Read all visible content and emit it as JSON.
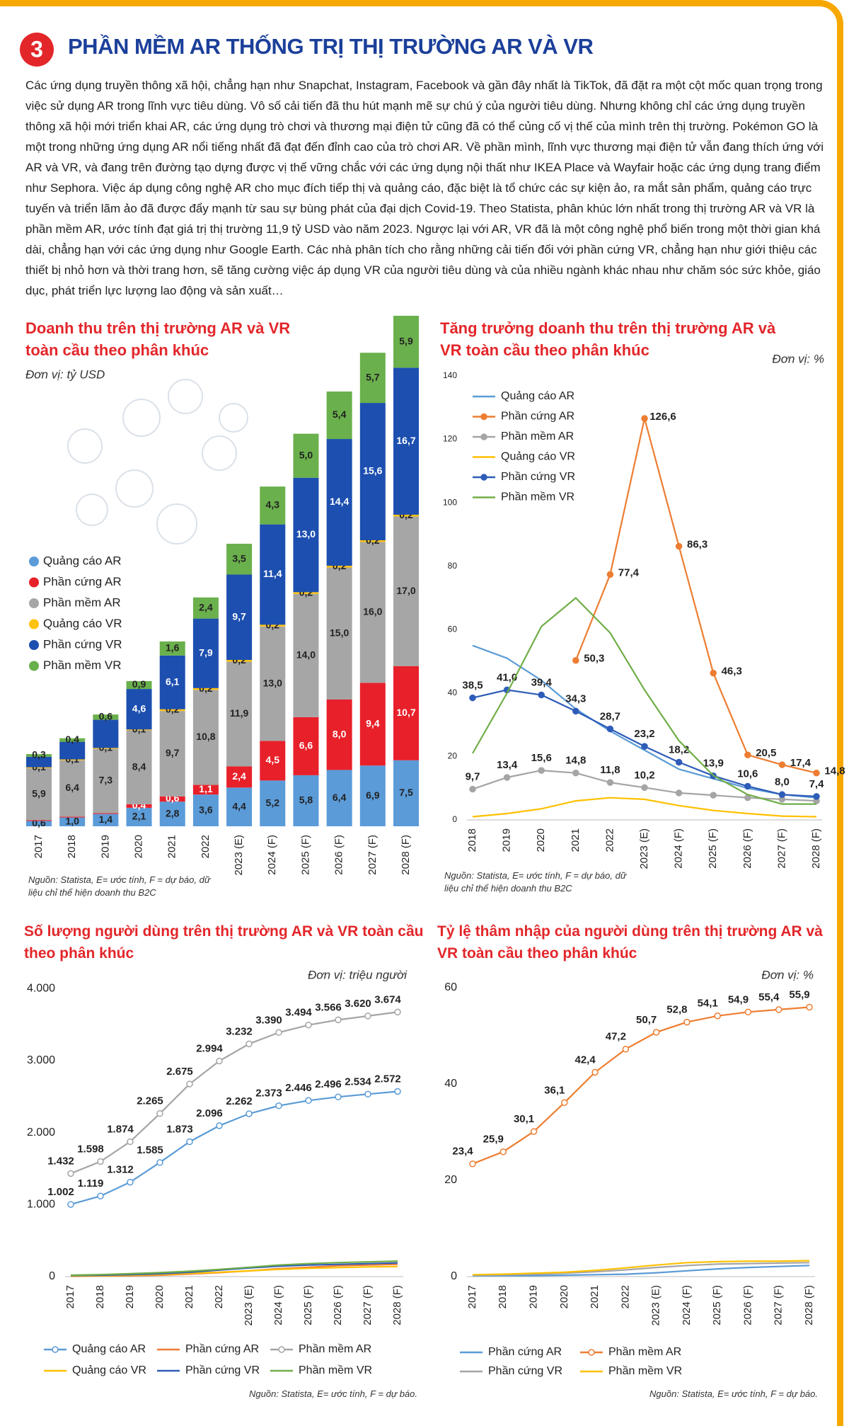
{
  "header": {
    "number": "3",
    "title": "PHẦN MỀM AR THỐNG TRỊ THỊ TRƯỜNG AR VÀ VR"
  },
  "intro": "Các ứng dụng truyền thông xã hội, chẳng hạn như Snapchat, Instagram, Facebook và gần đây nhất là TikTok, đã đặt ra một cột mốc quan trọng trong việc sử dụng AR trong lĩnh vực tiêu dùng. Vô số cải tiến đã thu hút mạnh mẽ sự chú ý của người tiêu dùng. Nhưng không chỉ các ứng dụng truyền thông xã hội mới triển khai AR, các ứng dụng trò chơi và thương mại điện tử cũng đã có thể củng cố vị thế của mình trên thị trường. Pokémon GO là một trong những ứng dụng AR nổi tiếng nhất đã đạt đến đỉnh cao của trò chơi AR. Về phần mình, lĩnh vực thương mại điện tử vẫn đang thích ứng với AR và VR, và đang trên đường tạo dựng được vị thế vững chắc với các ứng dụng nội thất như IKEA Place và Wayfair hoặc các ứng dụng trang điểm như Sephora. Việc áp dụng công nghệ AR cho mục đích tiếp thị và quảng cáo, đặc biệt là tổ chức các sự kiện ảo, ra mắt sản phẩm, quảng cáo trực tuyến và triển lãm ảo đã được đẩy mạnh từ sau sự bùng phát của đại dịch Covid-19. Theo Statista, phân khúc lớn nhất trong thị trường AR và VR là phần mềm AR, ước tính đạt giá trị thị trường 11,9 tỷ USD vào năm 2023. Ngược lại với AR, VR đã là một công nghệ phổ biến trong một thời gian khá dài, chẳng hạn với các ứng dụng như Google Earth. Các nhà phân tích cho rằng những cải tiến đối với phần cứng VR, chẳng hạn như giới thiệu các thiết bị nhỏ hơn và thời trang hơn, sẽ tăng cường việc áp dụng VR của người tiêu dùng và của nhiều ngành khác nhau như chăm sóc sức khỏe, giáo dục, phát triển lực lượng lao động và sản xuất…",
  "chart_data": [
    {
      "type": "bar",
      "stacked": true,
      "title": "Doanh thu trên thị trường AR và VR toàn cầu theo phân khúc",
      "unit": "Đơn vị: tỷ USD",
      "source": "Nguồn: Statista, E= ước tính, F = dự báo, dữ liệu chỉ thể hiện doanh thu B2C",
      "categories": [
        "2017",
        "2018",
        "2019",
        "2020",
        "2021",
        "2022",
        "2023 (E)",
        "2024 (F)",
        "2025 (F)",
        "2026 (F)",
        "2027 (F)",
        "2028 (F)"
      ],
      "series": [
        {
          "name": "Quảng cáo AR",
          "color": "#5b9bd8",
          "values": [
            0.6,
            1.0,
            1.4,
            2.1,
            2.8,
            3.6,
            4.4,
            5.2,
            5.8,
            6.4,
            6.9,
            7.5
          ],
          "value_labels": [
            "0,6",
            "1,0",
            "1,4",
            "2,1",
            "2,8",
            "3,6",
            "4,4",
            "5,2",
            "5,8",
            "6,4",
            "6,9",
            "7,5"
          ]
        },
        {
          "name": "Phần cứng AR",
          "color": "#e8202a",
          "values": [
            0.1,
            0.1,
            0.1,
            0.4,
            0.6,
            1.1,
            2.4,
            4.5,
            6.6,
            8.0,
            9.4,
            10.7
          ],
          "value_labels": [
            null,
            null,
            null,
            "0,4",
            "0,6",
            "1,1",
            "2,4",
            "4,5",
            "6,6",
            "8,0",
            "9,4",
            "10,7"
          ]
        },
        {
          "name": "Phần mềm AR",
          "color": "#a6a6a6",
          "values": [
            5.9,
            6.4,
            7.3,
            8.4,
            9.7,
            10.8,
            11.9,
            13.0,
            14.0,
            15.0,
            16.0,
            17.0
          ],
          "value_labels": [
            "5,9",
            "6,4",
            "7,3",
            "8,4",
            "9,7",
            "10,8",
            "11,9",
            "13,0",
            "14,0",
            "15,0",
            "16,0",
            "17,0"
          ]
        },
        {
          "name": "Quảng cáo VR",
          "color": "#ffc20e",
          "values": [
            0.1,
            0.1,
            0.1,
            0.1,
            0.2,
            0.2,
            0.2,
            0.2,
            0.2,
            0.2,
            0.2,
            0.2
          ],
          "value_labels": [
            "0,1",
            "0,1",
            "0,1",
            "0,1",
            "0,2",
            "0,2",
            "0,2",
            "0,2",
            "0,2",
            "0,2",
            "0,2",
            "0,2"
          ]
        },
        {
          "name": "Phần cứng VR",
          "color": "#1d4fb0",
          "values": [
            1.2,
            2.0,
            3.2,
            4.6,
            6.1,
            7.9,
            9.7,
            11.4,
            13.0,
            14.4,
            15.6,
            16.7
          ],
          "value_labels": [
            null,
            null,
            null,
            "4,6",
            "6,1",
            "7,9",
            "9,7",
            "11,4",
            "13,0",
            "14,4",
            "15,6",
            "16,7"
          ]
        },
        {
          "name": "Phần mềm VR",
          "color": "#6ab04c",
          "values": [
            0.3,
            0.4,
            0.6,
            0.9,
            1.6,
            2.4,
            3.5,
            4.3,
            5.0,
            5.4,
            5.7,
            5.9
          ],
          "value_labels": [
            "0,3",
            "0,4",
            "0,6",
            "0,9",
            "1,6",
            "2,4",
            "3,5",
            "4,3",
            "5,0",
            "5,4",
            "5,7",
            "5,9"
          ]
        }
      ]
    },
    {
      "type": "line",
      "title": "Tăng trưởng doanh thu trên thị trường AR và VR toàn cầu theo phân khúc",
      "unit": "Đơn vị: %",
      "source": "Nguồn: Statista, E= ước tính, F = dự báo, dữ liệu chỉ thể hiện doanh thu B2C",
      "categories": [
        "2018",
        "2019",
        "2020",
        "2021",
        "2022",
        "2023 (E)",
        "2024 (F)",
        "2025 (F)",
        "2026 (F)",
        "2027 (F)",
        "2028 (F)"
      ],
      "ylim": [
        0,
        140
      ],
      "yticks": [
        0,
        20,
        40,
        60,
        80,
        100,
        120,
        140
      ],
      "series": [
        {
          "name": "Quảng cáo AR",
          "color": "#5b9bd5",
          "values": [
            55,
            51,
            44,
            35,
            28,
            22,
            16,
            13,
            10,
            8,
            7
          ]
        },
        {
          "name": "Phần cứng AR",
          "color": "#ed7d31",
          "marker": "circle",
          "values": [
            null,
            null,
            null,
            50.3,
            77.4,
            126.6,
            86.3,
            46.3,
            20.5,
            17.4,
            14.8
          ],
          "value_labels": [
            null,
            null,
            null,
            "50,3",
            "77,4",
            "126,6",
            "86,3",
            "46,3",
            "20,5",
            "17,4",
            "14,8"
          ]
        },
        {
          "name": "Phần mềm AR",
          "color": "#a5a5a5",
          "marker": "circle",
          "values": [
            9.7,
            13.4,
            15.6,
            14.8,
            11.8,
            10.2,
            8.5,
            7.8,
            7,
            6.5,
            6
          ],
          "value_labels": [
            "9,7",
            "13,4",
            "15,6",
            "14,8",
            "11,8",
            "10,2",
            null,
            null,
            null,
            null,
            null
          ]
        },
        {
          "name": "Quảng cáo VR",
          "color": "#ffc000",
          "values": [
            1,
            2,
            3.5,
            6,
            7,
            6.5,
            4.5,
            3,
            2,
            1.2,
            1
          ]
        },
        {
          "name": "Phần cứng VR",
          "color": "#2e5cb8",
          "marker": "circle",
          "values": [
            38.5,
            41.0,
            39.4,
            34.3,
            28.7,
            23.2,
            18.2,
            13.9,
            10.6,
            8.0,
            7.4
          ],
          "value_labels": [
            "38,5",
            "41,0",
            "39,4",
            "34,3",
            "28,7",
            "23,2",
            "18,2",
            "13,9",
            "10,6",
            "8,0",
            "7,4"
          ]
        },
        {
          "name": "Phần mềm VR",
          "color": "#70ad47",
          "values": [
            21,
            40,
            61,
            70,
            59,
            41,
            25,
            14,
            8,
            5,
            5
          ]
        }
      ]
    },
    {
      "type": "line",
      "title": "Số lượng người dùng trên thị trường AR và VR toàn cầu theo phân khúc",
      "unit": "Đơn vị: triệu người",
      "source": "Nguồn: Statista, E= ước tính, F = dự báo.",
      "categories": [
        "2017",
        "2018",
        "2019",
        "2020",
        "2021",
        "2022",
        "2023 (E)",
        "2024 (F)",
        "2025 (F)",
        "2026 (F)",
        "2027 (F)",
        "2028 (F)"
      ],
      "ylim": [
        0,
        4150
      ],
      "yticks": [
        0,
        {
          "value": 1000,
          "label": "1.000"
        },
        {
          "value": 2000,
          "label": "2.000"
        },
        {
          "value": 3000,
          "label": "3.000"
        },
        {
          "value": 4000,
          "label": "4.000"
        }
      ],
      "series": [
        {
          "name": "Quảng cáo AR",
          "color": "#5b9bd5",
          "marker": "open-circle",
          "values": [
            1002,
            1119,
            1312,
            1585,
            1873,
            2096,
            2262,
            2373,
            2446,
            2496,
            2534,
            2572
          ],
          "value_labels": [
            "1.002",
            "1.119",
            "1.312",
            "1.585",
            "1.873",
            "2.096",
            "2.262",
            "2.373",
            "2.446",
            "2.496",
            "2.534",
            "2.572"
          ]
        },
        {
          "name": "Phần cứng AR",
          "color": "#ed7d31",
          "values": [
            5,
            8,
            12,
            20,
            35,
            55,
            80,
            110,
            130,
            150,
            160,
            170
          ]
        },
        {
          "name": "Phần mềm AR",
          "color": "#a5a5a5",
          "marker": "open-circle",
          "values": [
            1432,
            1598,
            1874,
            2265,
            2675,
            2994,
            3232,
            3390,
            3494,
            3566,
            3620,
            3674
          ],
          "value_labels": [
            "1.432",
            "1.598",
            "1.874",
            "2.265",
            "2.675",
            "2.994",
            "3.232",
            "3.390",
            "3.494",
            "3.566",
            "3.620",
            "3.674"
          ]
        },
        {
          "name": "Quảng cáo VR",
          "color": "#ffc000",
          "values": [
            10,
            15,
            20,
            30,
            45,
            60,
            80,
            100,
            115,
            125,
            135,
            140
          ]
        },
        {
          "name": "Phần cứng VR",
          "color": "#2e5cb8",
          "values": [
            15,
            20,
            28,
            40,
            60,
            90,
            120,
            145,
            160,
            170,
            180,
            190
          ]
        },
        {
          "name": "Phần mềm VR",
          "color": "#70ad47",
          "values": [
            20,
            28,
            40,
            55,
            75,
            100,
            130,
            160,
            180,
            195,
            205,
            215
          ]
        }
      ]
    },
    {
      "type": "line",
      "title": "Tỷ lệ thâm nhập của người dùng trên thị trường AR và VR toàn cầu theo phân khúc",
      "unit": "Đơn vị: %",
      "source": "Nguồn: Statista, E= ước tính, F = dự báo.",
      "categories": [
        "2017",
        "2018",
        "2019",
        "2020",
        "2021",
        "2022",
        "2023 (E)",
        "2024 (F)",
        "2025 (F)",
        "2026 (F)",
        "2027 (F)",
        "2028 (F)"
      ],
      "ylim": [
        0,
        62
      ],
      "yticks": [
        0,
        20,
        40,
        60
      ],
      "series": [
        {
          "name": "Phần cứng AR",
          "color": "#5b9bd5",
          "values": [
            0.2,
            0.2,
            0.2,
            0.3,
            0.4,
            0.5,
            0.8,
            1.2,
            1.6,
            1.9,
            2.1,
            2.3
          ]
        },
        {
          "name": "Phần mềm AR",
          "color": "#ed7d31",
          "marker": "open-circle",
          "values": [
            23.4,
            25.9,
            30.1,
            36.1,
            42.4,
            47.2,
            50.7,
            52.8,
            54.1,
            54.9,
            55.4,
            55.9
          ],
          "value_labels": [
            "23,4",
            "25,9",
            "30,1",
            "36,1",
            "42,4",
            "47,2",
            "50,7",
            "52,8",
            "54,1",
            "54,9",
            "55,4",
            "55,9"
          ]
        },
        {
          "name": "Phần cứng VR",
          "color": "#a5a5a5",
          "values": [
            0.3,
            0.4,
            0.5,
            0.7,
            1.0,
            1.4,
            1.9,
            2.3,
            2.6,
            2.7,
            2.8,
            2.9
          ]
        },
        {
          "name": "Phần mềm VR",
          "color": "#ffc000",
          "values": [
            0.4,
            0.5,
            0.7,
            0.9,
            1.3,
            1.8,
            2.4,
            2.9,
            3.1,
            3.2,
            3.2,
            3.3
          ]
        }
      ]
    }
  ]
}
